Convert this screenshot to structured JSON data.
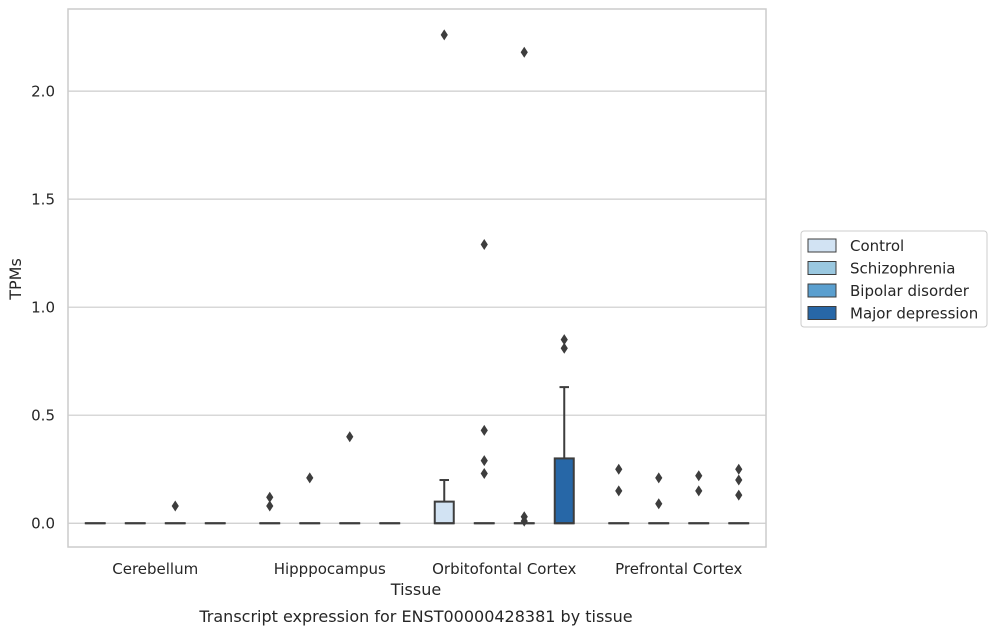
{
  "chart_data": {
    "type": "box",
    "xlabel": "Tissue",
    "ylabel": "TPMs",
    "caption": "Transcript expression for ENST00000428381 by tissue",
    "categories": [
      "Cerebellum",
      "Hipppocampus",
      "Orbitofontal Cortex",
      "Prefrontal Cortex"
    ],
    "ylim": [
      -0.11,
      2.38
    ],
    "yticks": [
      0.0,
      0.5,
      1.0,
      1.5,
      2.0
    ],
    "ytick_labels": [
      "0.0",
      "0.5",
      "1.0",
      "1.5",
      "2.0"
    ],
    "grid": true,
    "legend_position": "right",
    "series": [
      {
        "name": "Control",
        "color": "#d2e3f3",
        "boxes": [
          {
            "q1": 0,
            "median": 0,
            "q3": 0,
            "whisker_low": 0,
            "whisker_high": 0,
            "outliers": []
          },
          {
            "q1": 0,
            "median": 0,
            "q3": 0,
            "whisker_low": 0,
            "whisker_high": 0,
            "outliers": [
              0.08,
              0.12
            ]
          },
          {
            "q1": 0,
            "median": 0,
            "q3": 0.1,
            "whisker_low": 0,
            "whisker_high": 0.2,
            "outliers": [
              2.26
            ]
          },
          {
            "q1": 0,
            "median": 0,
            "q3": 0,
            "whisker_low": 0,
            "whisker_high": 0,
            "outliers": [
              0.15,
              0.25
            ]
          }
        ]
      },
      {
        "name": "Schizophrenia",
        "color": "#9ac8e0",
        "boxes": [
          {
            "q1": 0,
            "median": 0,
            "q3": 0,
            "whisker_low": 0,
            "whisker_high": 0,
            "outliers": []
          },
          {
            "q1": 0,
            "median": 0,
            "q3": 0,
            "whisker_low": 0,
            "whisker_high": 0,
            "outliers": [
              0.21
            ]
          },
          {
            "q1": 0,
            "median": 0,
            "q3": 0,
            "whisker_low": 0,
            "whisker_high": 0,
            "outliers": [
              0.23,
              0.29,
              0.43,
              1.29
            ]
          },
          {
            "q1": 0,
            "median": 0,
            "q3": 0,
            "whisker_low": 0,
            "whisker_high": 0,
            "outliers": [
              0.09,
              0.21
            ]
          }
        ]
      },
      {
        "name": "Bipolar disorder",
        "color": "#5a9fcf",
        "boxes": [
          {
            "q1": 0,
            "median": 0,
            "q3": 0,
            "whisker_low": 0,
            "whisker_high": 0,
            "outliers": [
              0.08
            ]
          },
          {
            "q1": 0,
            "median": 0,
            "q3": 0,
            "whisker_low": 0,
            "whisker_high": 0,
            "outliers": [
              0.4
            ]
          },
          {
            "q1": 0,
            "median": 0,
            "q3": 0,
            "whisker_low": 0,
            "whisker_high": 0,
            "outliers": [
              0.01,
              0.03,
              2.18
            ]
          },
          {
            "q1": 0,
            "median": 0,
            "q3": 0,
            "whisker_low": 0,
            "whisker_high": 0,
            "outliers": [
              0.15,
              0.22
            ]
          }
        ]
      },
      {
        "name": "Major depression",
        "color": "#2767a7",
        "boxes": [
          {
            "q1": 0,
            "median": 0,
            "q3": 0,
            "whisker_low": 0,
            "whisker_high": 0,
            "outliers": []
          },
          {
            "q1": 0,
            "median": 0,
            "q3": 0,
            "whisker_low": 0,
            "whisker_high": 0,
            "outliers": []
          },
          {
            "q1": 0,
            "median": 0,
            "q3": 0.3,
            "whisker_low": 0,
            "whisker_high": 0.63,
            "outliers": [
              0.81,
              0.85
            ]
          },
          {
            "q1": 0,
            "median": 0,
            "q3": 0,
            "whisker_low": 0,
            "whisker_high": 0,
            "outliers": [
              0.13,
              0.2,
              0.25
            ]
          }
        ]
      }
    ]
  }
}
